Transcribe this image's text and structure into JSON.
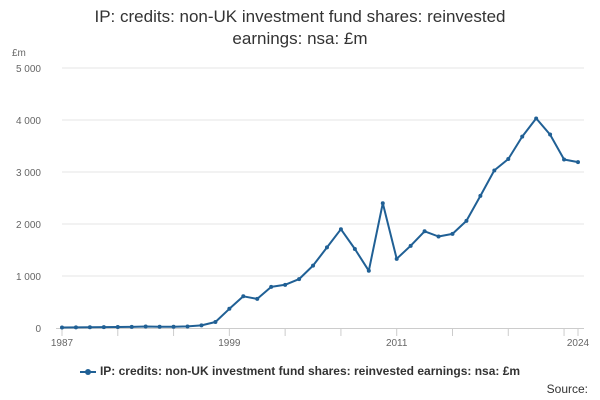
{
  "chart_data": {
    "type": "line",
    "title_line1": "IP: credits: non-UK investment fund shares: reinvested",
    "title_line2": "earnings: nsa: £m",
    "unit_label": "£m",
    "x": [
      1987,
      1988,
      1989,
      1990,
      1991,
      1992,
      1993,
      1994,
      1995,
      1996,
      1997,
      1998,
      1999,
      2000,
      2001,
      2002,
      2003,
      2004,
      2005,
      2006,
      2007,
      2008,
      2009,
      2010,
      2011,
      2012,
      2013,
      2014,
      2015,
      2016,
      2017,
      2018,
      2019,
      2020,
      2021,
      2022,
      2023,
      2024
    ],
    "series": [
      {
        "name": "IP: credits: non-UK investment fund shares: reinvested earnings: nsa: £m",
        "values": [
          10,
          12,
          15,
          18,
          20,
          22,
          28,
          25,
          25,
          30,
          50,
          115,
          370,
          610,
          560,
          790,
          830,
          940,
          1200,
          1550,
          1900,
          1520,
          1100,
          2400,
          1330,
          1580,
          1860,
          1760,
          1810,
          2060,
          2540,
          3030,
          3250,
          3680,
          4030,
          3720,
          3240,
          3190
        ],
        "color": "#206095"
      }
    ],
    "x_ticks": [
      "1987",
      "1999",
      "2011",
      "2024"
    ],
    "y_ticks": [
      "0",
      "1 000",
      "2 000",
      "3 000",
      "4 000",
      "5 000"
    ],
    "ylim": [
      0,
      5000
    ],
    "grid": true,
    "legend_position": "bottom",
    "legend_label": "IP: credits: non-UK investment fund shares: reinvested earnings: nsa: £m",
    "source_label": "Source:"
  }
}
